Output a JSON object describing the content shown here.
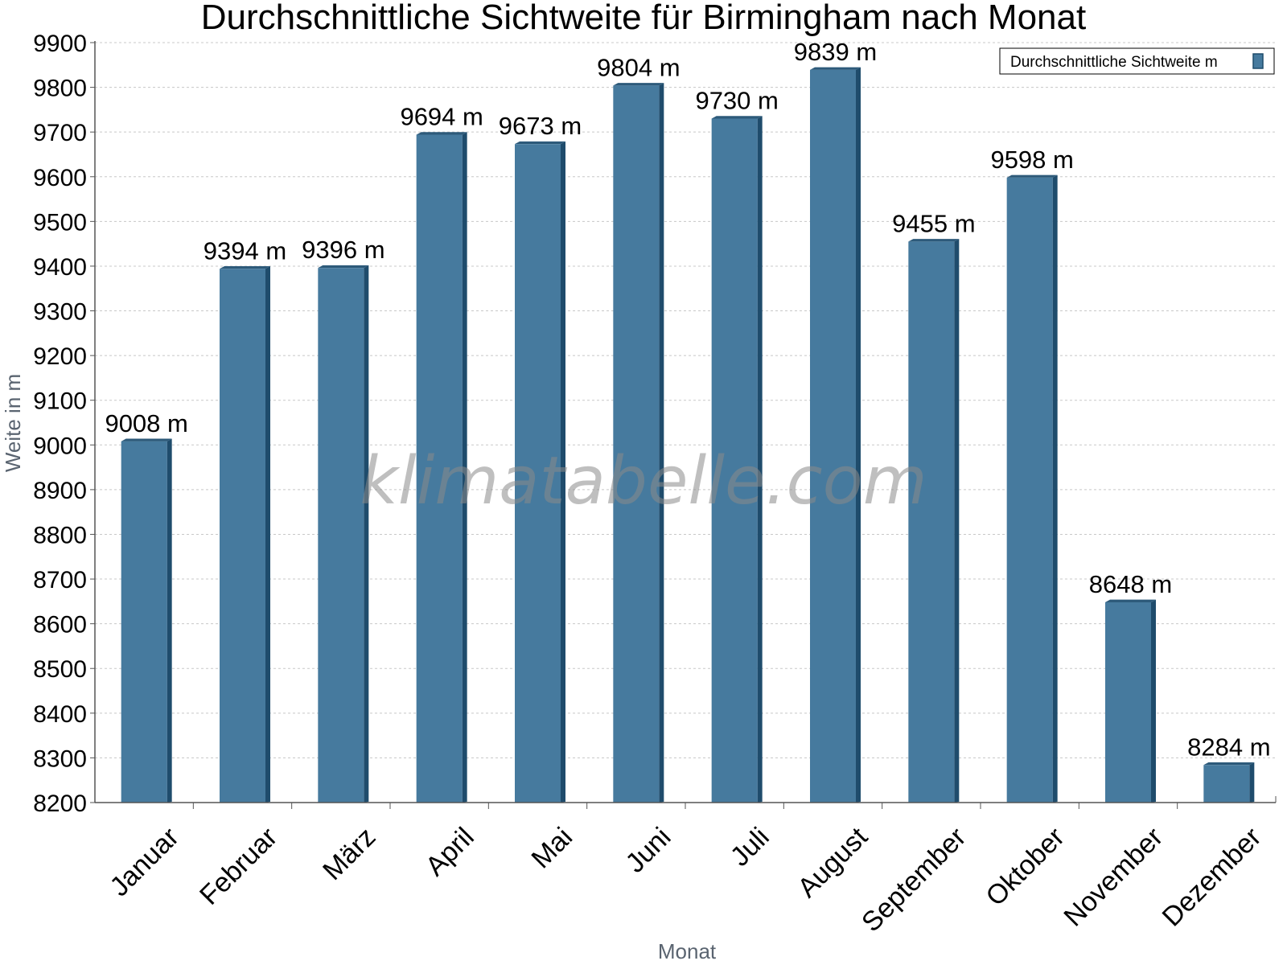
{
  "chart_data": {
    "type": "bar",
    "title": "Durchschnittliche Sichtweite für Birmingham nach Monat",
    "xlabel": "Monat",
    "ylabel": "Weite in m",
    "categories": [
      "Januar",
      "Februar",
      "März",
      "April",
      "Mai",
      "Juni",
      "Juli",
      "August",
      "September",
      "Oktober",
      "November",
      "Dezember"
    ],
    "series": [
      {
        "name": "Durchschnittliche Sichtweite m",
        "values": [
          9008,
          9394,
          9396,
          9694,
          9673,
          9804,
          9730,
          9839,
          9455,
          9598,
          8648,
          8284
        ],
        "color": "#467a9e"
      }
    ],
    "value_labels": [
      "9008 m",
      "9394 m",
      "9396 m",
      "9694 m",
      "9673 m",
      "9804 m",
      "9730 m",
      "9839 m",
      "9455 m",
      "9598 m",
      "8648 m",
      "8284 m"
    ],
    "ylim": [
      8200,
      9900
    ],
    "yticks": [
      8200,
      8300,
      8400,
      8500,
      8600,
      8700,
      8800,
      8900,
      9000,
      9100,
      9200,
      9300,
      9400,
      9500,
      9600,
      9700,
      9800,
      9900
    ],
    "grid": true,
    "legend_position": "top-right",
    "watermark": "klimatabelle.com",
    "colors": {
      "bar": "#467a9e",
      "bar_side": "#1f4c6c",
      "bar_top": "#2d5a7a",
      "grid": "#c8c8c8"
    }
  }
}
